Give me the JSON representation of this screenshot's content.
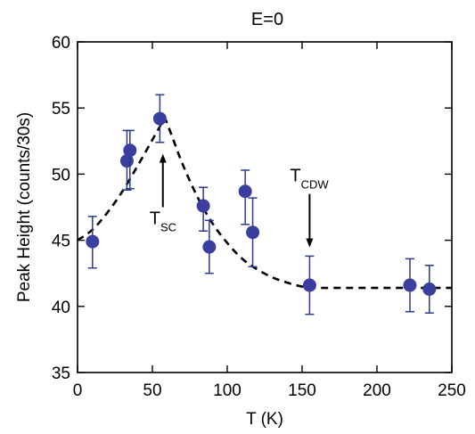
{
  "chart_data": {
    "type": "scatter",
    "title": "E=0",
    "xlabel": "T (K)",
    "ylabel": "Peak Height (counts/30s)",
    "xlim": [
      0,
      250
    ],
    "ylim": [
      35,
      60
    ],
    "xticks": [
      0,
      50,
      100,
      150,
      200,
      250
    ],
    "yticks": [
      35,
      40,
      45,
      50,
      55,
      60
    ],
    "grid": false,
    "marker_color": "#3a3f9f",
    "errorbar_color": "#2d3a8c",
    "points": [
      {
        "x": 10,
        "y": 44.9,
        "err_low": 2.0,
        "err_high": 1.9
      },
      {
        "x": 33,
        "y": 51.0,
        "err_low": 2.2,
        "err_high": 2.3
      },
      {
        "x": 35,
        "y": 51.8,
        "err_low": 2.9,
        "err_high": 1.5
      },
      {
        "x": 55,
        "y": 54.2,
        "err_low": 1.8,
        "err_high": 1.8
      },
      {
        "x": 84,
        "y": 47.6,
        "err_low": 1.9,
        "err_high": 1.4
      },
      {
        "x": 88,
        "y": 44.5,
        "err_low": 2.0,
        "err_high": 2.0
      },
      {
        "x": 112,
        "y": 48.7,
        "err_low": 2.5,
        "err_high": 1.6
      },
      {
        "x": 117,
        "y": 45.6,
        "err_low": 2.6,
        "err_high": 2.6
      },
      {
        "x": 155,
        "y": 41.6,
        "err_low": 2.2,
        "err_high": 2.2
      },
      {
        "x": 222,
        "y": 41.6,
        "err_low": 2.0,
        "err_high": 2.0
      },
      {
        "x": 235,
        "y": 41.3,
        "err_low": 1.8,
        "err_high": 1.8
      }
    ],
    "guide_curve": {
      "style": "dashed",
      "x": [
        0,
        10,
        20,
        30,
        40,
        50,
        55,
        58,
        62,
        70,
        80,
        90,
        100,
        110,
        120,
        130,
        140,
        150,
        160,
        180,
        200,
        220,
        250
      ],
      "y": [
        45.0,
        45.8,
        47.1,
        48.7,
        50.6,
        52.6,
        53.6,
        54.2,
        53.2,
        50.8,
        48.3,
        46.3,
        44.8,
        43.6,
        42.8,
        42.2,
        41.8,
        41.5,
        41.4,
        41.4,
        41.4,
        41.4,
        41.4
      ]
    },
    "annotations": [
      {
        "id": "tsc",
        "main": "T",
        "sub": "SC",
        "x": 57,
        "arrow_from_y": 47.5,
        "arrow_to_y": 51.2,
        "direction": "up"
      },
      {
        "id": "tcdw",
        "main": "T",
        "sub": "CDW",
        "x": 155,
        "arrow_from_y": 48.5,
        "arrow_to_y": 44.8,
        "direction": "down"
      }
    ]
  }
}
